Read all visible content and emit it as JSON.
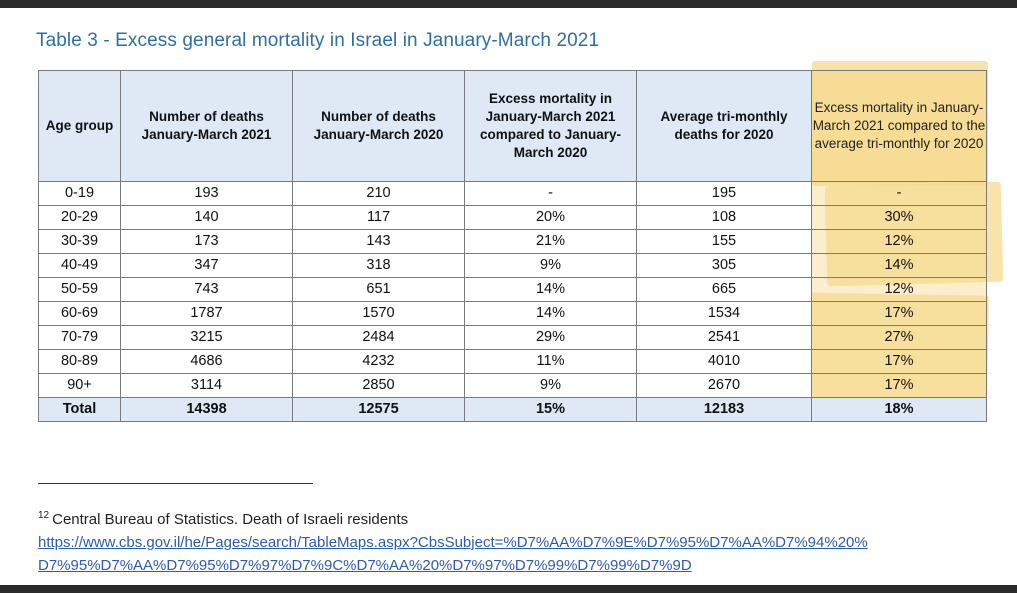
{
  "title": "Table 3 - Excess general mortality in Israel in January-March 2021",
  "table": {
    "headers": [
      "Age group",
      "Number of deaths January-March 2021",
      "Number of deaths January-March 2020",
      "Excess mortality in January-March 2021 compared to January-March 2020",
      "Average tri-monthly deaths for 2020",
      "Excess mortality in January-March 2021 compared to the average tri-monthly for 2020"
    ],
    "rows": [
      [
        "0-19",
        "193",
        "210",
        "-",
        "195",
        "-"
      ],
      [
        "20-29",
        "140",
        "117",
        "20%",
        "108",
        "30%"
      ],
      [
        "30-39",
        "173",
        "143",
        "21%",
        "155",
        "12%"
      ],
      [
        "40-49",
        "347",
        "318",
        "9%",
        "305",
        "14%"
      ],
      [
        "50-59",
        "743",
        "651",
        "14%",
        "665",
        "12%"
      ],
      [
        "60-69",
        "1787",
        "1570",
        "14%",
        "1534",
        "17%"
      ],
      [
        "70-79",
        "3215",
        "2484",
        "29%",
        "2541",
        "27%"
      ],
      [
        "80-89",
        "4686",
        "4232",
        "11%",
        "4010",
        "17%"
      ],
      [
        "90+",
        "3114",
        "2850",
        "9%",
        "2670",
        "17%"
      ]
    ],
    "total": [
      "Total",
      "14398",
      "12575",
      "15%",
      "12183",
      "18%"
    ]
  },
  "footnote": {
    "number": "12",
    "text": "Central Bureau of Statistics. Death of Israeli residents",
    "link_line1": "https://www.cbs.gov.il/he/Pages/search/TableMaps.aspx?CbsSubject=%D7%AA%D7%9E%D7%95%D7%AA%D7%94%20%",
    "link_line2": "D7%95%D7%AA%D7%95%D7%97%D7%9C%D7%AA%20%D7%97%D7%99%D7%99%D7%9D"
  },
  "colors": {
    "title": "#2e6fa3",
    "header_bg": "#dfe9f6",
    "highlight": "#f6d98e",
    "link": "#2a5db0"
  }
}
